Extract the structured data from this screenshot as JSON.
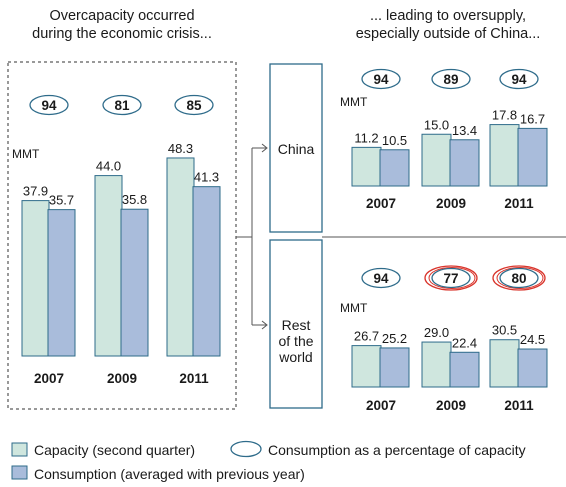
{
  "headings": {
    "left": [
      "Overcapacity occurred",
      "during the economic crisis..."
    ],
    "right": [
      "... leading to oversupply,",
      "especially outside of China..."
    ]
  },
  "unit": "MMT",
  "colors": {
    "capacity": "#cfe6de",
    "consumption": "#a9bcdb",
    "bar_border": "#2e6b8a",
    "oval": "#2e6b8a",
    "highlight": "#d9342b",
    "connector": "#555555"
  },
  "legend": {
    "capacity": "Capacity (second quarter)",
    "ratio": "Consumption as a percentage of capacity",
    "consumption": "Consumption (averaged with previous year)"
  },
  "chart_data": [
    {
      "type": "bar",
      "region": "",
      "categories": [
        "2007",
        "2009",
        "2011"
      ],
      "series": [
        {
          "name": "Capacity (second quarter)",
          "values": [
            37.9,
            44.0,
            48.3
          ]
        },
        {
          "name": "Consumption (averaged with previous year)",
          "values": [
            35.7,
            35.8,
            41.3
          ]
        }
      ],
      "ratio": [
        94,
        81,
        85
      ],
      "highlighted": [
        false,
        false,
        false
      ],
      "ylabel": "MMT"
    },
    {
      "type": "bar",
      "region": "China",
      "categories": [
        "2007",
        "2009",
        "2011"
      ],
      "series": [
        {
          "name": "Capacity (second quarter)",
          "values": [
            11.2,
            15.0,
            17.8
          ]
        },
        {
          "name": "Consumption (averaged with previous year)",
          "values": [
            10.5,
            13.4,
            16.7
          ]
        }
      ],
      "ratio": [
        94,
        89,
        94
      ],
      "highlighted": [
        false,
        false,
        false
      ],
      "ylabel": "MMT"
    },
    {
      "type": "bar",
      "region": "Rest of the world",
      "region_lines": [
        "Rest",
        "of the",
        "world"
      ],
      "categories": [
        "2007",
        "2009",
        "2011"
      ],
      "series": [
        {
          "name": "Capacity (second quarter)",
          "values": [
            26.7,
            29.0,
            30.5
          ]
        },
        {
          "name": "Consumption (averaged with previous year)",
          "values": [
            25.2,
            22.4,
            24.5
          ]
        }
      ],
      "ratio": [
        94,
        77,
        80
      ],
      "highlighted": [
        false,
        true,
        true
      ],
      "ylabel": "MMT"
    }
  ]
}
